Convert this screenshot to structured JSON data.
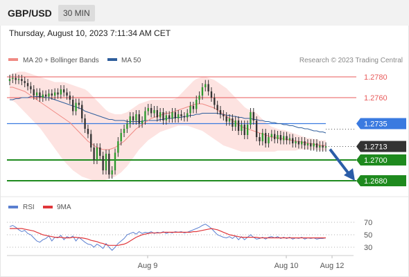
{
  "header": {
    "pair": "GBP/USD",
    "timeframe": "30 MIN"
  },
  "datetime": "Thursday, August 10, 2023 7:11:34 AM CET",
  "legend": {
    "ma20": "MA 20 + Bollinger Bands",
    "ma50": "MA 50",
    "credit": "Research © 2023 Trading Central"
  },
  "rsi_legend": {
    "rsi": "RSI",
    "ma9": "9MA"
  },
  "colors": {
    "ma20": "#f08a84",
    "band_fill": "#fde0de",
    "ma50": "#2f5e9c",
    "rsi": "#5a7fd0",
    "rsi_ma": "#e0363a",
    "resistance": "#e85a5a",
    "pivot": "#3a7ae0",
    "support": "#1e8a1e",
    "current": "#333333",
    "arrow": "#2b5da8",
    "up_candle": "#2e9a2e",
    "down_candle": "#333333"
  },
  "chart_data": {
    "type": "candlestick",
    "symbol": "GBP/USD",
    "interval": "30 MIN",
    "ylim": [
      1.267,
      1.279
    ],
    "x_tick_labels": [
      "Aug 9",
      "Aug 10",
      "Aug 12"
    ],
    "levels": [
      {
        "value": 1.278,
        "label": "1.2780",
        "kind": "resistance"
      },
      {
        "value": 1.276,
        "label": "1.2760",
        "kind": "resistance"
      },
      {
        "value": 1.2735,
        "label": "1.2735",
        "kind": "pivot"
      },
      {
        "value": 1.2713,
        "label": "1.2713",
        "kind": "current"
      },
      {
        "value": 1.27,
        "label": "1.2700",
        "kind": "support"
      },
      {
        "value": 1.268,
        "label": "1.2680",
        "kind": "support"
      }
    ],
    "close": [
      1.2778,
      1.2779,
      1.2777,
      1.2778,
      1.2776,
      1.2774,
      1.2771,
      1.2768,
      1.2762,
      1.2765,
      1.276,
      1.2763,
      1.2761,
      1.2764,
      1.2762,
      1.2765,
      1.2763,
      1.2768,
      1.2765,
      1.2762,
      1.2758,
      1.2747,
      1.2755,
      1.2753,
      1.274,
      1.273,
      1.2725,
      1.2712,
      1.27,
      1.2712,
      1.2704,
      1.269,
      1.2706,
      1.2686,
      1.269,
      1.2707,
      1.2718,
      1.2726,
      1.273,
      1.2735,
      1.2742,
      1.2738,
      1.2744,
      1.2735,
      1.2738,
      1.2747,
      1.275,
      1.2745,
      1.2748,
      1.2741,
      1.2746,
      1.2738,
      1.2743,
      1.274,
      1.2746,
      1.274,
      1.2744,
      1.2742,
      1.2741,
      1.2745,
      1.2752,
      1.2749,
      1.2758,
      1.2762,
      1.277,
      1.2773,
      1.2766,
      1.276,
      1.2753,
      1.2748,
      1.2744,
      1.2742,
      1.2737,
      1.274,
      1.2732,
      1.2738,
      1.2728,
      1.2734,
      1.2724,
      1.2734,
      1.2746,
      1.2738,
      1.2722,
      1.2718,
      1.2726,
      1.2716,
      1.2722,
      1.2725,
      1.272,
      1.2724,
      1.2719,
      1.2723,
      1.2719,
      1.2721,
      1.2716,
      1.2718,
      1.2715,
      1.2718,
      1.2714,
      1.2716,
      1.2713,
      1.2716,
      1.2712,
      1.2714,
      1.2712,
      1.2713
    ],
    "ma20": [
      1.277,
      1.277,
      1.2769,
      1.2768,
      1.2767,
      1.2766,
      1.2764,
      1.2762,
      1.276,
      1.2758,
      1.2756,
      1.2754,
      1.2752,
      1.275,
      1.2748,
      1.2746,
      1.2744,
      1.2742,
      1.274,
      1.2738,
      1.2736,
      1.2733,
      1.273,
      1.2727,
      1.2724,
      1.2721,
      1.2718,
      1.2716,
      1.2714,
      1.2712,
      1.2711,
      1.271,
      1.271,
      1.271,
      1.2711,
      1.2712,
      1.2714,
      1.2716,
      1.2718,
      1.2721,
      1.2724,
      1.2727,
      1.273,
      1.2732,
      1.2734,
      1.2736,
      1.2738,
      1.274,
      1.2741,
      1.2742,
      1.2743,
      1.2744,
      1.2745,
      1.2745,
      1.2746,
      1.2747,
      1.2748,
      1.2749,
      1.275,
      1.2751,
      1.2752,
      1.2753,
      1.2754,
      1.2754,
      1.2754,
      1.2753,
      1.2752,
      1.2751,
      1.275,
      1.2748,
      1.2746,
      1.2744,
      1.2742,
      1.274,
      1.2738,
      1.2736,
      1.2734,
      1.2732,
      1.2731,
      1.273,
      1.2729,
      1.2728,
      1.2727,
      1.2726,
      1.2725,
      1.2724,
      1.2723,
      1.2722,
      1.2722,
      1.2721,
      1.2721,
      1.272,
      1.272,
      1.2719,
      1.2719,
      1.2718,
      1.2718,
      1.2717,
      1.2717,
      1.2716,
      1.2716,
      1.2715,
      1.2715,
      1.2714,
      1.2714,
      1.2714
    ],
    "bb_upper": [
      1.2782,
      1.2783,
      1.2784,
      1.2785,
      1.2785,
      1.2785,
      1.2784,
      1.2783,
      1.2782,
      1.2781,
      1.278,
      1.2779,
      1.2778,
      1.2777,
      1.2776,
      1.2775,
      1.2775,
      1.2775,
      1.2775,
      1.2774,
      1.2773,
      1.2772,
      1.2771,
      1.277,
      1.2769,
      1.2768,
      1.2766,
      1.2763,
      1.276,
      1.2757,
      1.2754,
      1.2751,
      1.2748,
      1.2746,
      1.2745,
      1.2744,
      1.2744,
      1.2744,
      1.2745,
      1.2746,
      1.2748,
      1.275,
      1.2752,
      1.2754,
      1.2755,
      1.2756,
      1.2757,
      1.2758,
      1.2758,
      1.2758,
      1.2758,
      1.2758,
      1.2758,
      1.2758,
      1.2758,
      1.2759,
      1.2761,
      1.2764,
      1.2767,
      1.277,
      1.2773,
      1.2776,
      1.2778,
      1.2779,
      1.278,
      1.278,
      1.2779,
      1.2778,
      1.2777,
      1.2775,
      1.2773,
      1.2771,
      1.2769,
      1.2766,
      1.2763,
      1.276,
      1.2757,
      1.2754,
      1.2751,
      1.2749,
      1.2748,
      1.2747,
      1.2745,
      1.2742,
      1.2739,
      1.2736,
      1.2734,
      1.2732,
      1.2731,
      1.273,
      1.2729,
      1.2729,
      1.2728,
      1.2727,
      1.2726,
      1.2725,
      1.2724,
      1.2723,
      1.2722,
      1.2721,
      1.2721,
      1.272,
      1.272,
      1.2719,
      1.2719,
      1.2719
    ],
    "bb_lower": [
      1.2758,
      1.2757,
      1.2755,
      1.2752,
      1.2749,
      1.2746,
      1.2743,
      1.274,
      1.2737,
      1.2734,
      1.2731,
      1.2727,
      1.2723,
      1.2719,
      1.2715,
      1.2711,
      1.2707,
      1.2703,
      1.2699,
      1.2696,
      1.2693,
      1.269,
      1.2688,
      1.2686,
      1.2684,
      1.2683,
      1.2682,
      1.2681,
      1.268,
      1.268,
      1.268,
      1.268,
      1.2681,
      1.2682,
      1.2683,
      1.2684,
      1.2686,
      1.2688,
      1.2691,
      1.2694,
      1.2698,
      1.2702,
      1.2706,
      1.271,
      1.2713,
      1.2716,
      1.2719,
      1.2721,
      1.2723,
      1.2725,
      1.2727,
      1.2728,
      1.2729,
      1.273,
      1.2731,
      1.2732,
      1.2733,
      1.2733,
      1.2733,
      1.2733,
      1.2732,
      1.2731,
      1.273,
      1.2729,
      1.2728,
      1.2726,
      1.2724,
      1.2722,
      1.272,
      1.2718,
      1.2716,
      1.2714,
      1.2713,
      1.2712,
      1.2711,
      1.271,
      1.2709,
      1.2708,
      1.2708,
      1.2708,
      1.2708,
      1.2708,
      1.2708,
      1.2708,
      1.2708,
      1.2708,
      1.2708,
      1.2708,
      1.2708,
      1.2709,
      1.2709,
      1.2709,
      1.2709,
      1.2709,
      1.2709,
      1.2709,
      1.271,
      1.271,
      1.271,
      1.271,
      1.271,
      1.271,
      1.271,
      1.2709,
      1.2709,
      1.2709
    ],
    "ma50": [
      1.2758,
      1.2758,
      1.2759,
      1.2759,
      1.276,
      1.276,
      1.276,
      1.2761,
      1.2761,
      1.2761,
      1.2761,
      1.2761,
      1.276,
      1.276,
      1.2759,
      1.2758,
      1.2757,
      1.2756,
      1.2755,
      1.2754,
      1.2753,
      1.2752,
      1.2751,
      1.275,
      1.2749,
      1.2747,
      1.2746,
      1.2745,
      1.2744,
      1.2743,
      1.2742,
      1.2741,
      1.274,
      1.2739,
      1.2739,
      1.2738,
      1.2738,
      1.2738,
      1.2738,
      1.2737,
      1.2737,
      1.2737,
      1.2737,
      1.2737,
      1.2737,
      1.2738,
      1.2738,
      1.2738,
      1.2738,
      1.2738,
      1.2739,
      1.2739,
      1.274,
      1.274,
      1.274,
      1.2741,
      1.2741,
      1.2741,
      1.2742,
      1.2742,
      1.2743,
      1.2743,
      1.2744,
      1.2744,
      1.2745,
      1.2745,
      1.2745,
      1.2745,
      1.2745,
      1.2745,
      1.2744,
      1.2744,
      1.2743,
      1.2743,
      1.2742,
      1.2742,
      1.2741,
      1.2741,
      1.274,
      1.274,
      1.274,
      1.2739,
      1.2739,
      1.2738,
      1.2738,
      1.2737,
      1.2737,
      1.2736,
      1.2736,
      1.2735,
      1.2735,
      1.2734,
      1.2734,
      1.2733,
      1.2733,
      1.2732,
      1.2731,
      1.2731,
      1.273,
      1.273,
      1.2729,
      1.2728,
      1.2728,
      1.2727,
      1.2727,
      1.2726
    ],
    "rsi": {
      "ticks": [
        70,
        50,
        30
      ],
      "ylim": [
        20,
        80
      ],
      "values": [
        63,
        65,
        62,
        58,
        55,
        57,
        52,
        50,
        45,
        40,
        38,
        42,
        44,
        48,
        40,
        46,
        45,
        49,
        42,
        47,
        45,
        48,
        40,
        46,
        42,
        38,
        35,
        34,
        30,
        35,
        32,
        28,
        36,
        30,
        25,
        30,
        36,
        40,
        44,
        50,
        52,
        54,
        51,
        55,
        52,
        54,
        53,
        55,
        52,
        54,
        53,
        55,
        52,
        54,
        53,
        55,
        54,
        55,
        53,
        54,
        56,
        58,
        60,
        62,
        65,
        67,
        64,
        60,
        55,
        50,
        48,
        46,
        45,
        47,
        44,
        48,
        42,
        47,
        42,
        46,
        50,
        46,
        43,
        44,
        46,
        43,
        46,
        47,
        45,
        47,
        44,
        46,
        44,
        46,
        43,
        45,
        44,
        46,
        43,
        45,
        44,
        45,
        43,
        44,
        44,
        45
      ],
      "ma9": [
        60,
        60,
        60,
        60,
        60,
        59,
        58,
        57,
        56,
        54,
        52,
        50,
        49,
        48,
        47,
        46,
        46,
        46,
        45,
        45,
        45,
        46,
        46,
        45,
        45,
        44,
        43,
        41,
        40,
        39,
        37,
        36,
        34,
        33,
        33,
        33,
        33,
        34,
        35,
        37,
        40,
        43,
        46,
        48,
        50,
        51,
        52,
        53,
        53,
        53,
        53,
        54,
        54,
        54,
        54,
        54,
        54,
        54,
        54,
        54,
        54,
        55,
        55,
        56,
        57,
        58,
        59,
        60,
        59,
        58,
        56,
        54,
        52,
        50,
        49,
        48,
        47,
        46,
        46,
        46,
        46,
        46,
        46,
        45,
        45,
        45,
        45,
        45,
        45,
        45,
        45,
        45,
        45,
        45,
        45,
        45,
        45,
        45,
        45,
        45,
        45,
        45,
        45,
        45,
        45,
        45
      ]
    }
  }
}
